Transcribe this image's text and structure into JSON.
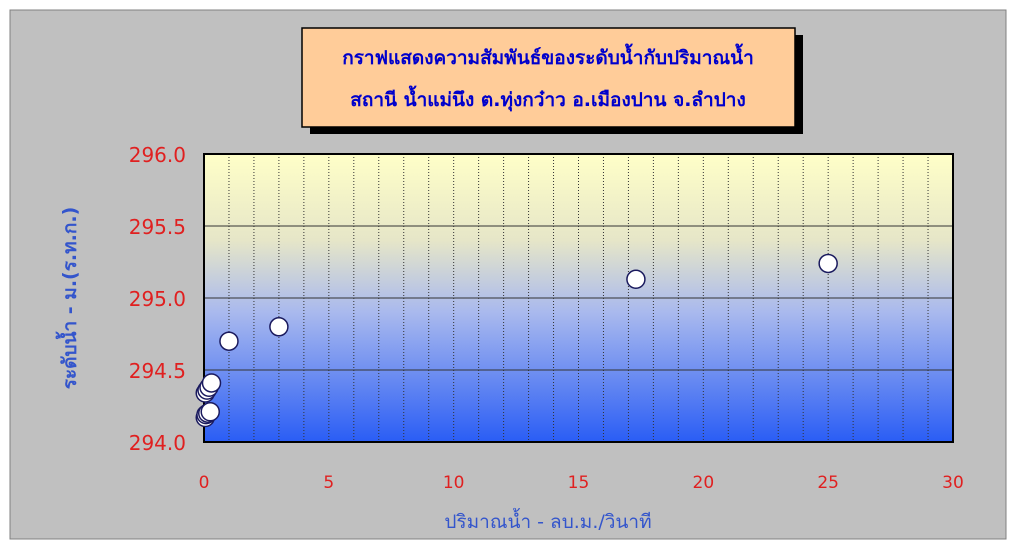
{
  "chart_data": {
    "type": "scatter",
    "title_lines": [
      "กราฟแสดงความสัมพันธ์ของระดับน้ำกับปริมาณน้ำ",
      "สถานี น้ำแม่นึง ต.ทุ่งกว๋าว อ.เมืองปาน จ.ลำปาง"
    ],
    "xlabel": "ปริมาณน้ำ - ลบ.ม./วินาที",
    "ylabel": "ระดับน้ำ - ม.(ร.ท.ก.)",
    "xlim": [
      0,
      30
    ],
    "ylim": [
      294.0,
      296.0
    ],
    "x_ticks": [
      "0",
      "5",
      "10",
      "15",
      "20",
      "25",
      "30"
    ],
    "y_ticks": [
      "294.0",
      "294.5",
      "295.0",
      "295.5",
      "296.0"
    ],
    "x_minor_grid_step": 1,
    "grid": true,
    "points": [
      {
        "x": 0.05,
        "y": 294.17
      },
      {
        "x": 0.08,
        "y": 294.19
      },
      {
        "x": 0.15,
        "y": 294.2
      },
      {
        "x": 0.25,
        "y": 294.21
      },
      {
        "x": 0.05,
        "y": 294.34
      },
      {
        "x": 0.12,
        "y": 294.36
      },
      {
        "x": 0.2,
        "y": 294.38
      },
      {
        "x": 0.3,
        "y": 294.41
      },
      {
        "x": 1.0,
        "y": 294.7
      },
      {
        "x": 3.0,
        "y": 294.8
      },
      {
        "x": 17.3,
        "y": 295.13
      },
      {
        "x": 25.0,
        "y": 295.24
      }
    ],
    "colors": {
      "frame_bg": "#c0c0c0",
      "plot_top": "#ffffc8",
      "plot_bottom": "#2a5df5",
      "tick_labels": "#e02020",
      "title_text": "#0000cc",
      "title_box": "#ffcc99",
      "axis_title": "#3355cc",
      "marker_fill": "#ffffff",
      "marker_stroke": "#1a1a5e"
    }
  }
}
